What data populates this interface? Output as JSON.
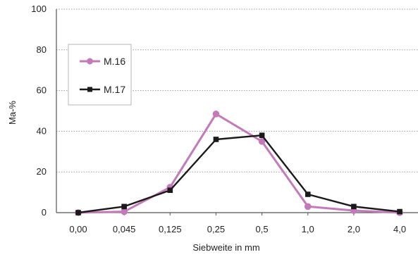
{
  "chart_data": {
    "type": "line",
    "title": "",
    "xlabel": "Siebweite in mm",
    "ylabel": "Ma-%",
    "categories": [
      "0,00",
      "0,045",
      "0,125",
      "0,25",
      "0,5",
      "1,0",
      "2,0",
      "4,0"
    ],
    "ylim": [
      0,
      100
    ],
    "yticks": [
      0,
      20,
      40,
      60,
      80,
      100
    ],
    "grid": "horizontal dotted",
    "legend_position": "top-left",
    "series": [
      {
        "name": "M.16",
        "marker": "circle",
        "color": "#c47ab8",
        "values": [
          0,
          0.5,
          12.5,
          48.5,
          35,
          3,
          1,
          0
        ]
      },
      {
        "name": "M.17",
        "marker": "square",
        "color": "#1a1a1a",
        "values": [
          0,
          3,
          11,
          36,
          38,
          9,
          3,
          0.5
        ]
      }
    ]
  }
}
